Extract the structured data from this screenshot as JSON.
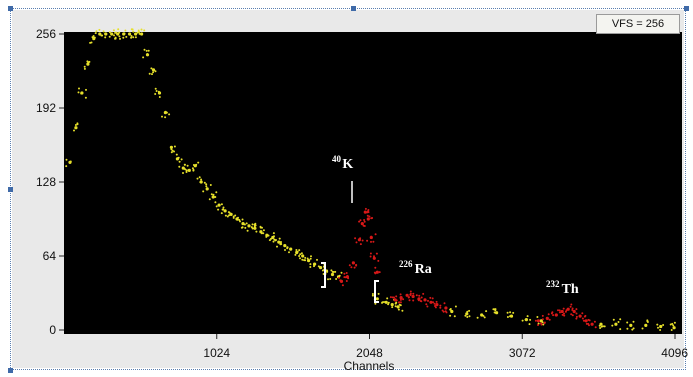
{
  "vfs_label": "VFS = 256",
  "colors": {
    "background": "#000000",
    "spectrum": "#e6e02a",
    "roi": "#d81818",
    "panel": "#e9e9e9",
    "marker": "#ffffff"
  },
  "chart_data": {
    "type": "scatter",
    "title": "",
    "xlabel": "Channels",
    "ylabel": "",
    "xlim": [
      0,
      4096
    ],
    "ylim": [
      0,
      256
    ],
    "x_ticks": [
      "1024",
      "2048",
      "3072",
      "4096"
    ],
    "y_ticks": [
      "256",
      "192",
      "128",
      "64",
      "0"
    ],
    "grid": false,
    "series": [
      {
        "role": "spectrum",
        "color": "#e6e02a",
        "x": [
          40,
          80,
          120,
          160,
          200,
          240,
          280,
          320,
          360,
          400,
          440,
          480,
          520,
          560,
          600,
          640,
          680,
          720,
          760,
          800,
          840,
          880,
          920,
          960,
          1000,
          1040,
          1080,
          1120,
          1160,
          1200,
          1240,
          1280,
          1320,
          1360,
          1400,
          1440,
          1480,
          1520,
          1560,
          1600,
          1640,
          1680,
          1720,
          1760,
          1800,
          1840,
          2100,
          2160,
          2200,
          2240,
          2600,
          2700,
          2800,
          2900,
          3000,
          3100,
          3200,
          3600,
          3700,
          3800,
          3900,
          4000,
          4090
        ],
        "y": [
          145,
          175,
          205,
          230,
          252,
          256,
          256,
          256,
          256,
          256,
          256,
          256,
          256,
          238,
          225,
          205,
          188,
          158,
          148,
          140,
          138,
          142,
          128,
          122,
          115,
          108,
          103,
          100,
          96,
          92,
          90,
          88,
          85,
          82,
          80,
          76,
          73,
          70,
          67,
          64,
          60,
          57,
          54,
          51,
          48,
          46,
          27,
          24,
          22,
          20,
          16,
          14,
          13,
          15,
          12,
          9,
          8,
          5,
          5,
          4,
          4,
          3,
          2
        ]
      },
      {
        "role": "roi",
        "color": "#d81818",
        "x": [
          1860,
          1900,
          1940,
          1980,
          2000,
          2020,
          2040,
          2060,
          2080,
          2100,
          2220,
          2260,
          2300,
          2340,
          2380,
          2420,
          2460,
          2500,
          2560,
          3180,
          3240,
          3300,
          3340,
          3380,
          3420,
          3460,
          3500,
          3540
        ],
        "y": [
          42,
          46,
          58,
          78,
          92,
          102,
          96,
          80,
          62,
          50,
          26,
          28,
          30,
          29,
          27,
          26,
          24,
          22,
          19,
          8,
          10,
          13,
          16,
          18,
          16,
          12,
          8,
          5
        ]
      }
    ],
    "annotations": [
      {
        "mass": "40",
        "symbol": "K",
        "x": 2040
      },
      {
        "mass": "226",
        "symbol": "Ra",
        "x": 2340
      },
      {
        "mass": "232",
        "symbol": "Th",
        "x": 3340
      }
    ]
  }
}
